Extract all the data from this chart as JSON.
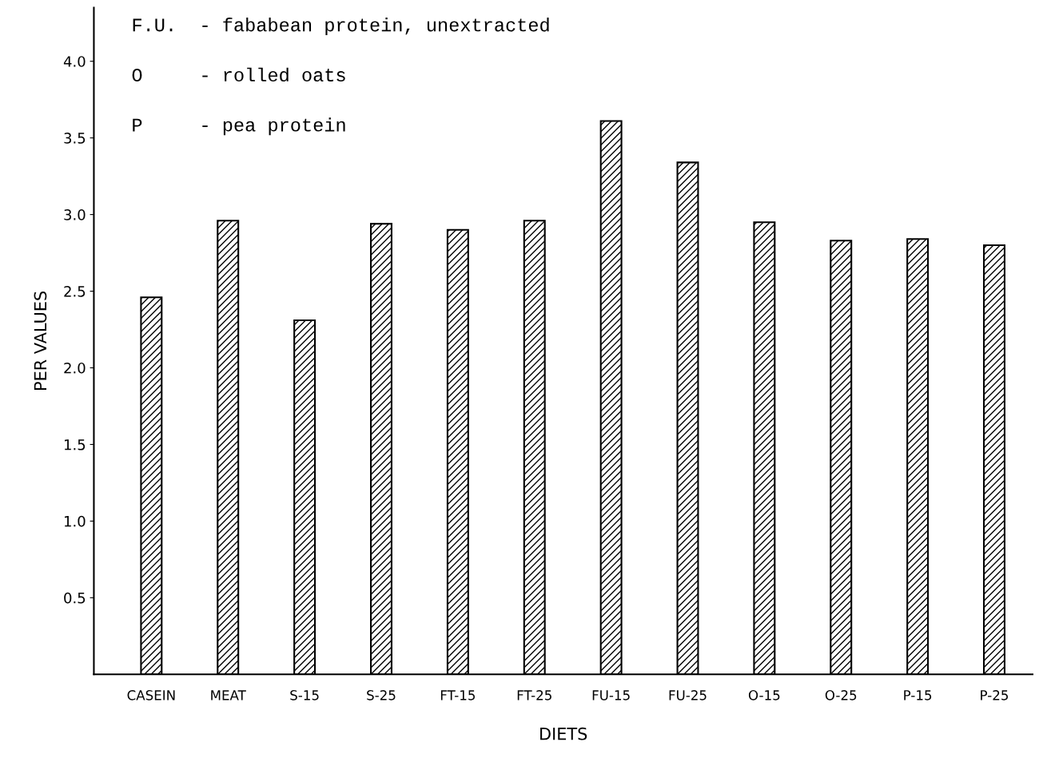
{
  "chart_data": {
    "type": "bar",
    "xlabel": "DIETS",
    "ylabel": "PER VALUES",
    "categories": [
      "CASEIN",
      "MEAT",
      "S-15",
      "S-25",
      "FT-15",
      "FT-25",
      "FU-15",
      "FU-25",
      "O-15",
      "O-25",
      "P-15",
      "P-25"
    ],
    "values": [
      2.46,
      2.96,
      2.31,
      2.94,
      2.9,
      2.96,
      3.61,
      3.34,
      2.95,
      2.83,
      2.84,
      2.8
    ],
    "color": "#000000",
    "ylim": [
      0,
      4.35
    ],
    "yticks": [
      0.5,
      {
        "value": 1,
        "label": "1.0"
      },
      1.5,
      {
        "value": 2,
        "label": "2.0"
      },
      2.5,
      {
        "value": 3,
        "label": "3.0"
      },
      3.5,
      {
        "value": 4,
        "label": "4.0"
      }
    ],
    "grid": false,
    "legend": false,
    "annotations": [
      "F.U.  - fababean protein, unextracted",
      "O     - rolled oats",
      "P     - pea protein"
    ]
  }
}
